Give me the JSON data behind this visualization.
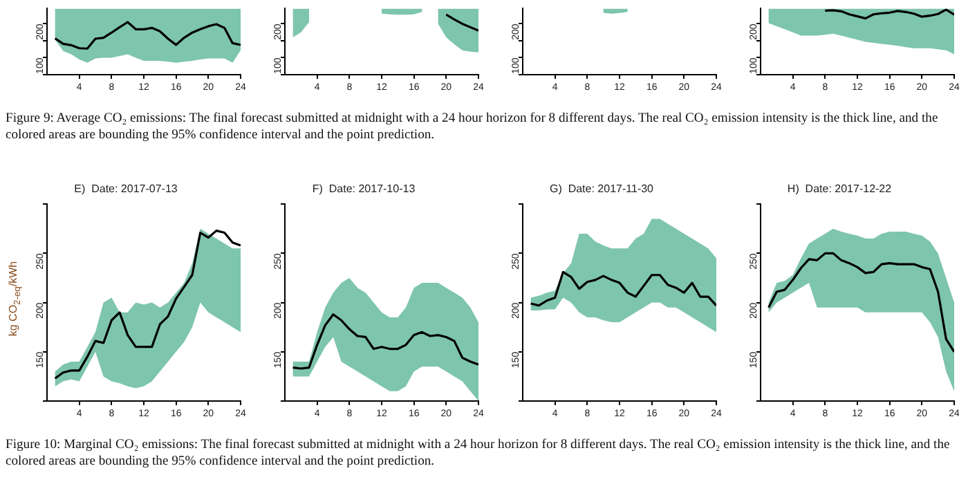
{
  "chart_data": [
    {
      "type": "line",
      "annotations": [
        "Figure 9: Average CO₂ emissions: The final forecast submitted at midnight with a 24 hour horizon for 8 different days. The real CO₂ emission intensity is the thick line, and the colored areas are bounding the 95% confidence interval and the point prediction."
      ],
      "x": [
        1,
        2,
        3,
        4,
        5,
        6,
        7,
        8,
        9,
        10,
        11,
        12,
        13,
        14,
        15,
        16,
        17,
        18,
        19,
        20,
        21,
        22,
        23,
        24
      ],
      "xlim": [
        0,
        24
      ],
      "xticks": [
        4,
        8,
        12,
        16,
        20,
        24
      ],
      "ylim": [
        50,
        245
      ],
      "yticks": [
        {
          "value": 50,
          "label": null
        },
        100,
        {
          "value": 150,
          "label": null
        },
        200
      ],
      "series": [
        {
          "color": "#000000",
          "values": [
            157,
            141,
            137,
            128,
            127,
            156,
            159,
            174,
            190,
            205,
            184,
            184,
            188,
            178,
            156,
            138,
            159,
            174,
            184,
            193,
            199,
            188,
            143,
            138
          ],
          "lower": [
            153,
            120,
            110,
            95,
            85,
            98,
            100,
            100,
            105,
            110,
            100,
            91,
            91,
            91,
            88,
            85,
            88,
            91,
            95,
            98,
            98,
            98,
            85,
            122
          ],
          "upper": [
            245,
            245,
            245,
            245,
            245,
            245,
            245,
            245,
            245,
            245,
            245,
            245,
            245,
            245,
            245,
            245,
            245,
            245,
            245,
            245,
            245,
            245,
            245,
            245
          ]
        }
      ]
    },
    {
      "type": "line",
      "x": [
        1,
        2,
        3,
        4,
        5,
        6,
        7,
        8,
        9,
        10,
        11,
        12,
        13,
        14,
        15,
        16,
        17,
        18,
        19,
        20,
        21,
        22,
        23,
        24
      ],
      "xlim": [
        0,
        24
      ],
      "xticks": [
        4,
        8,
        12,
        16,
        20,
        24
      ],
      "ylim": [
        50,
        245
      ],
      "yticks": [
        {
          "value": 50,
          "label": null
        },
        100,
        {
          "value": 150,
          "label": null
        },
        200
      ],
      "series": [
        {
          "color": "#000000",
          "values": [
            null,
            null,
            null,
            null,
            null,
            null,
            null,
            null,
            null,
            null,
            null,
            null,
            null,
            null,
            null,
            null,
            null,
            null,
            null,
            227,
            213,
            200,
            190,
            180
          ],
          "lower": [
            160,
            175,
            205,
            null,
            null,
            null,
            null,
            null,
            null,
            null,
            null,
            230,
            228,
            227,
            227,
            228,
            235,
            null,
            200,
            160,
            140,
            122,
            118,
            116
          ],
          "upper": [
            245,
            245,
            245,
            null,
            null,
            null,
            null,
            null,
            null,
            null,
            null,
            245,
            245,
            245,
            245,
            245,
            245,
            null,
            245,
            245,
            245,
            245,
            245,
            245
          ]
        }
      ]
    },
    {
      "type": "line",
      "xlim": [
        0,
        24
      ],
      "xticks": [
        4,
        8,
        12,
        16,
        20,
        24
      ],
      "ylim": [
        50,
        245
      ],
      "yticks": [
        {
          "value": 50,
          "label": null
        },
        100,
        {
          "value": 150,
          "label": null
        },
        200
      ],
      "series": [
        {
          "color": "#000000",
          "x": [
            10,
            11,
            12,
            13
          ],
          "values": [
            null,
            null,
            null,
            null
          ],
          "lower": [
            232,
            230,
            232,
            235
          ],
          "upper": [
            245,
            245,
            245,
            245
          ]
        }
      ]
    },
    {
      "type": "line",
      "x": [
        1,
        2,
        3,
        4,
        5,
        6,
        7,
        8,
        9,
        10,
        11,
        12,
        13,
        14,
        15,
        16,
        17,
        18,
        19,
        20,
        21,
        22,
        23,
        24
      ],
      "xlim": [
        0,
        24
      ],
      "xticks": [
        4,
        8,
        12,
        16,
        20,
        24
      ],
      "ylim": [
        50,
        245
      ],
      "yticks": [
        {
          "value": 50,
          "label": null
        },
        100,
        {
          "value": 150,
          "label": null
        },
        200
      ],
      "series": [
        {
          "color": "#000000",
          "values": [
            null,
            null,
            null,
            null,
            null,
            null,
            null,
            239,
            240,
            237,
            228,
            222,
            216,
            228,
            231,
            233,
            238,
            235,
            230,
            221,
            224,
            229,
            242,
            227
          ],
          "lower": [
            202,
            193,
            184,
            175,
            165,
            165,
            165,
            168,
            171,
            165,
            159,
            153,
            147,
            144,
            141,
            138,
            135,
            131,
            128,
            128,
            128,
            125,
            122,
            110
          ],
          "upper": [
            245,
            245,
            245,
            245,
            245,
            245,
            245,
            245,
            245,
            245,
            245,
            245,
            245,
            245,
            245,
            245,
            245,
            245,
            245,
            245,
            245,
            245,
            245,
            245
          ]
        }
      ]
    },
    {
      "type": "line",
      "title": "E)  Date: 2017-07-13",
      "ylabel": "kg CO$_{2-eq}$/kWh",
      "annotations": [
        "Figure 10: Marginal CO₂ emissions: The final forecast submitted at midnight with a 24 hour horizon for 8 different days. The real CO₂ emission intensity is the thick line, and the colored areas are bounding the 95% confidence interval and the point prediction."
      ],
      "x": [
        1,
        2,
        3,
        4,
        5,
        6,
        7,
        8,
        9,
        10,
        11,
        12,
        13,
        14,
        15,
        16,
        17,
        18,
        19,
        20,
        21,
        22,
        23,
        24
      ],
      "xlim": [
        0,
        24
      ],
      "xticks": [
        4,
        8,
        12,
        16,
        20,
        24
      ],
      "ylim": [
        100,
        300
      ],
      "yticks": [
        {
          "value": 100,
          "label": null
        },
        150,
        200,
        250,
        {
          "value": 300,
          "label": null
        }
      ],
      "series": [
        {
          "color": "#000000",
          "values": [
            123,
            129,
            131,
            131,
            145,
            161,
            159,
            182,
            190,
            167,
            155,
            155,
            155,
            178,
            186,
            204,
            216,
            228,
            271,
            266,
            273,
            271,
            261,
            258
          ],
          "lower": [
            115,
            120,
            122,
            120,
            135,
            150,
            125,
            120,
            118,
            115,
            113,
            115,
            120,
            130,
            140,
            150,
            160,
            175,
            200,
            190,
            185,
            180,
            175,
            170
          ],
          "upper": [
            130,
            137,
            140,
            140,
            155,
            170,
            200,
            205,
            190,
            190,
            200,
            198,
            200,
            195,
            200,
            210,
            220,
            240,
            275,
            270,
            265,
            260,
            255,
            255
          ]
        }
      ]
    },
    {
      "type": "line",
      "title": "F)  Date: 2017-10-13",
      "x": [
        1,
        2,
        3,
        4,
        5,
        6,
        7,
        8,
        9,
        10,
        11,
        12,
        13,
        14,
        15,
        16,
        17,
        18,
        19,
        20,
        21,
        22,
        23,
        24
      ],
      "xlim": [
        0,
        24
      ],
      "xticks": [
        4,
        8,
        12,
        16,
        20,
        24
      ],
      "ylim": [
        100,
        300
      ],
      "yticks": [
        {
          "value": 100,
          "label": null
        },
        150,
        200,
        250,
        {
          "value": 300,
          "label": null
        }
      ],
      "series": [
        {
          "color": "#000000",
          "values": [
            134,
            133,
            134,
            157,
            177,
            188,
            182,
            173,
            166,
            165,
            153,
            155,
            153,
            153,
            157,
            167,
            170,
            166,
            167,
            165,
            161,
            144,
            140,
            137
          ],
          "lower": [
            125,
            125,
            125,
            140,
            155,
            165,
            140,
            135,
            130,
            125,
            120,
            115,
            110,
            110,
            115,
            130,
            135,
            135,
            135,
            130,
            125,
            120,
            110,
            100
          ],
          "upper": [
            140,
            140,
            140,
            170,
            195,
            210,
            220,
            225,
            215,
            210,
            200,
            190,
            185,
            185,
            195,
            215,
            220,
            220,
            220,
            215,
            210,
            205,
            195,
            180
          ]
        }
      ]
    },
    {
      "type": "line",
      "title": "G)  Date: 2017-11-30",
      "x": [
        1,
        2,
        3,
        4,
        5,
        6,
        7,
        8,
        9,
        10,
        11,
        12,
        13,
        14,
        15,
        16,
        17,
        18,
        19,
        20,
        21,
        22,
        23,
        24
      ],
      "xlim": [
        0,
        24
      ],
      "xticks": [
        4,
        8,
        12,
        16,
        20,
        24
      ],
      "ylim": [
        100,
        300
      ],
      "yticks": [
        {
          "value": 100,
          "label": null
        },
        150,
        200,
        250,
        {
          "value": 300,
          "label": null
        }
      ],
      "series": [
        {
          "color": "#000000",
          "values": [
            199,
            197,
            202,
            205,
            231,
            226,
            214,
            221,
            223,
            227,
            223,
            220,
            210,
            206,
            217,
            228,
            228,
            218,
            215,
            210,
            220,
            206,
            206,
            197
          ],
          "lower": [
            192,
            192,
            193,
            193,
            205,
            200,
            190,
            185,
            185,
            182,
            180,
            180,
            185,
            190,
            195,
            200,
            200,
            195,
            195,
            190,
            185,
            180,
            175,
            170
          ],
          "upper": [
            205,
            207,
            210,
            212,
            230,
            240,
            270,
            270,
            262,
            258,
            255,
            255,
            255,
            265,
            270,
            285,
            285,
            280,
            275,
            270,
            265,
            260,
            255,
            245
          ]
        }
      ]
    },
    {
      "type": "line",
      "title": "H)  Date: 2017-12-22",
      "x": [
        1,
        2,
        3,
        4,
        5,
        6,
        7,
        8,
        9,
        10,
        11,
        12,
        13,
        14,
        15,
        16,
        17,
        18,
        19,
        20,
        21,
        22,
        23,
        24
      ],
      "xlim": [
        0,
        24
      ],
      "xticks": [
        4,
        8,
        12,
        16,
        20,
        24
      ],
      "ylim": [
        100,
        300
      ],
      "yticks": [
        {
          "value": 100,
          "label": null
        },
        150,
        200,
        250,
        {
          "value": 300,
          "label": null
        }
      ],
      "series": [
        {
          "color": "#000000",
          "values": [
            195,
            211,
            213,
            223,
            235,
            244,
            243,
            250,
            250,
            243,
            240,
            236,
            230,
            231,
            239,
            240,
            239,
            239,
            239,
            236,
            234,
            211,
            163,
            150
          ],
          "lower": [
            190,
            200,
            205,
            210,
            215,
            220,
            195,
            195,
            195,
            195,
            195,
            195,
            190,
            190,
            190,
            190,
            190,
            190,
            190,
            190,
            180,
            165,
            130,
            110
          ],
          "upper": [
            200,
            220,
            222,
            228,
            245,
            260,
            265,
            270,
            275,
            272,
            270,
            268,
            265,
            265,
            270,
            272,
            272,
            272,
            270,
            268,
            262,
            250,
            225,
            200
          ]
        }
      ]
    }
  ]
}
